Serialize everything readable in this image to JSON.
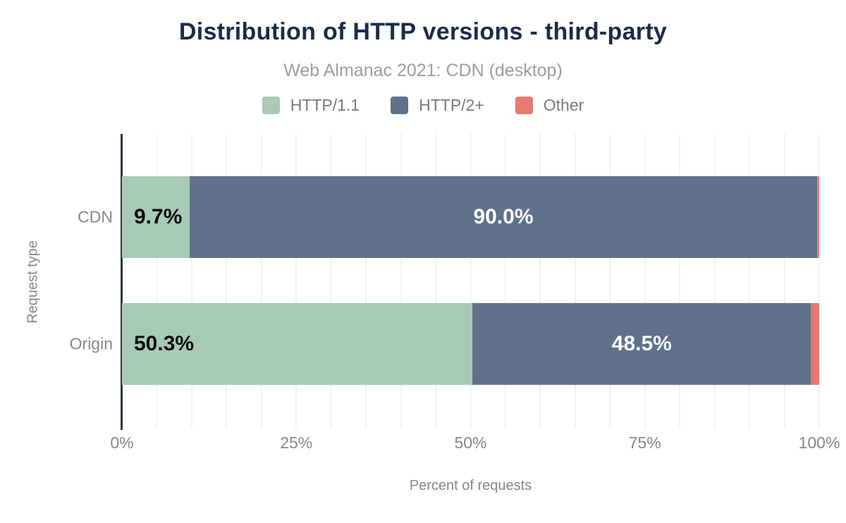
{
  "header": {
    "title": "Distribution of HTTP versions - third-party",
    "subtitle": "Web Almanac 2021: CDN (desktop)"
  },
  "colors": {
    "title": "#1b2b4d",
    "subtitle": "#9b9ea3",
    "axis_line": "#2a3849",
    "gridline": "#f2f2f2",
    "tick_text": "#83878c",
    "legend_text": "#747880",
    "background": "#ffffff"
  },
  "chart_data": {
    "type": "bar",
    "orientation": "horizontal",
    "stacked": true,
    "title": "Distribution of HTTP versions - third-party",
    "subtitle": "Web Almanac 2021: CDN (desktop)",
    "categories": [
      "CDN",
      "Origin"
    ],
    "series": [
      {
        "name": "HTTP/1.1",
        "color": "#a8cab6",
        "values": [
          9.7,
          50.3
        ],
        "labels": [
          "9.7%",
          "50.3%"
        ],
        "label_color": "#0b0b0b",
        "label_align": "left"
      },
      {
        "name": "HTTP/2+",
        "color": "#5f718a",
        "values": [
          90.0,
          48.5
        ],
        "labels": [
          "90.0%",
          "48.5%"
        ],
        "label_color": "#ffffff",
        "label_align": "center"
      },
      {
        "name": "Other",
        "color": "#e8796f",
        "values": [
          0.3,
          1.2
        ],
        "labels": [
          null,
          null
        ],
        "label_color": null,
        "label_align": "none"
      }
    ],
    "xlabel": "Percent of requests",
    "ylabel": "Request type",
    "xlim": [
      0,
      100
    ],
    "x_ticks": [
      "0%",
      "25%",
      "50%",
      "75%",
      "100%"
    ],
    "grid": "vertical",
    "grid_divisions": 20,
    "legend_position": "top"
  }
}
